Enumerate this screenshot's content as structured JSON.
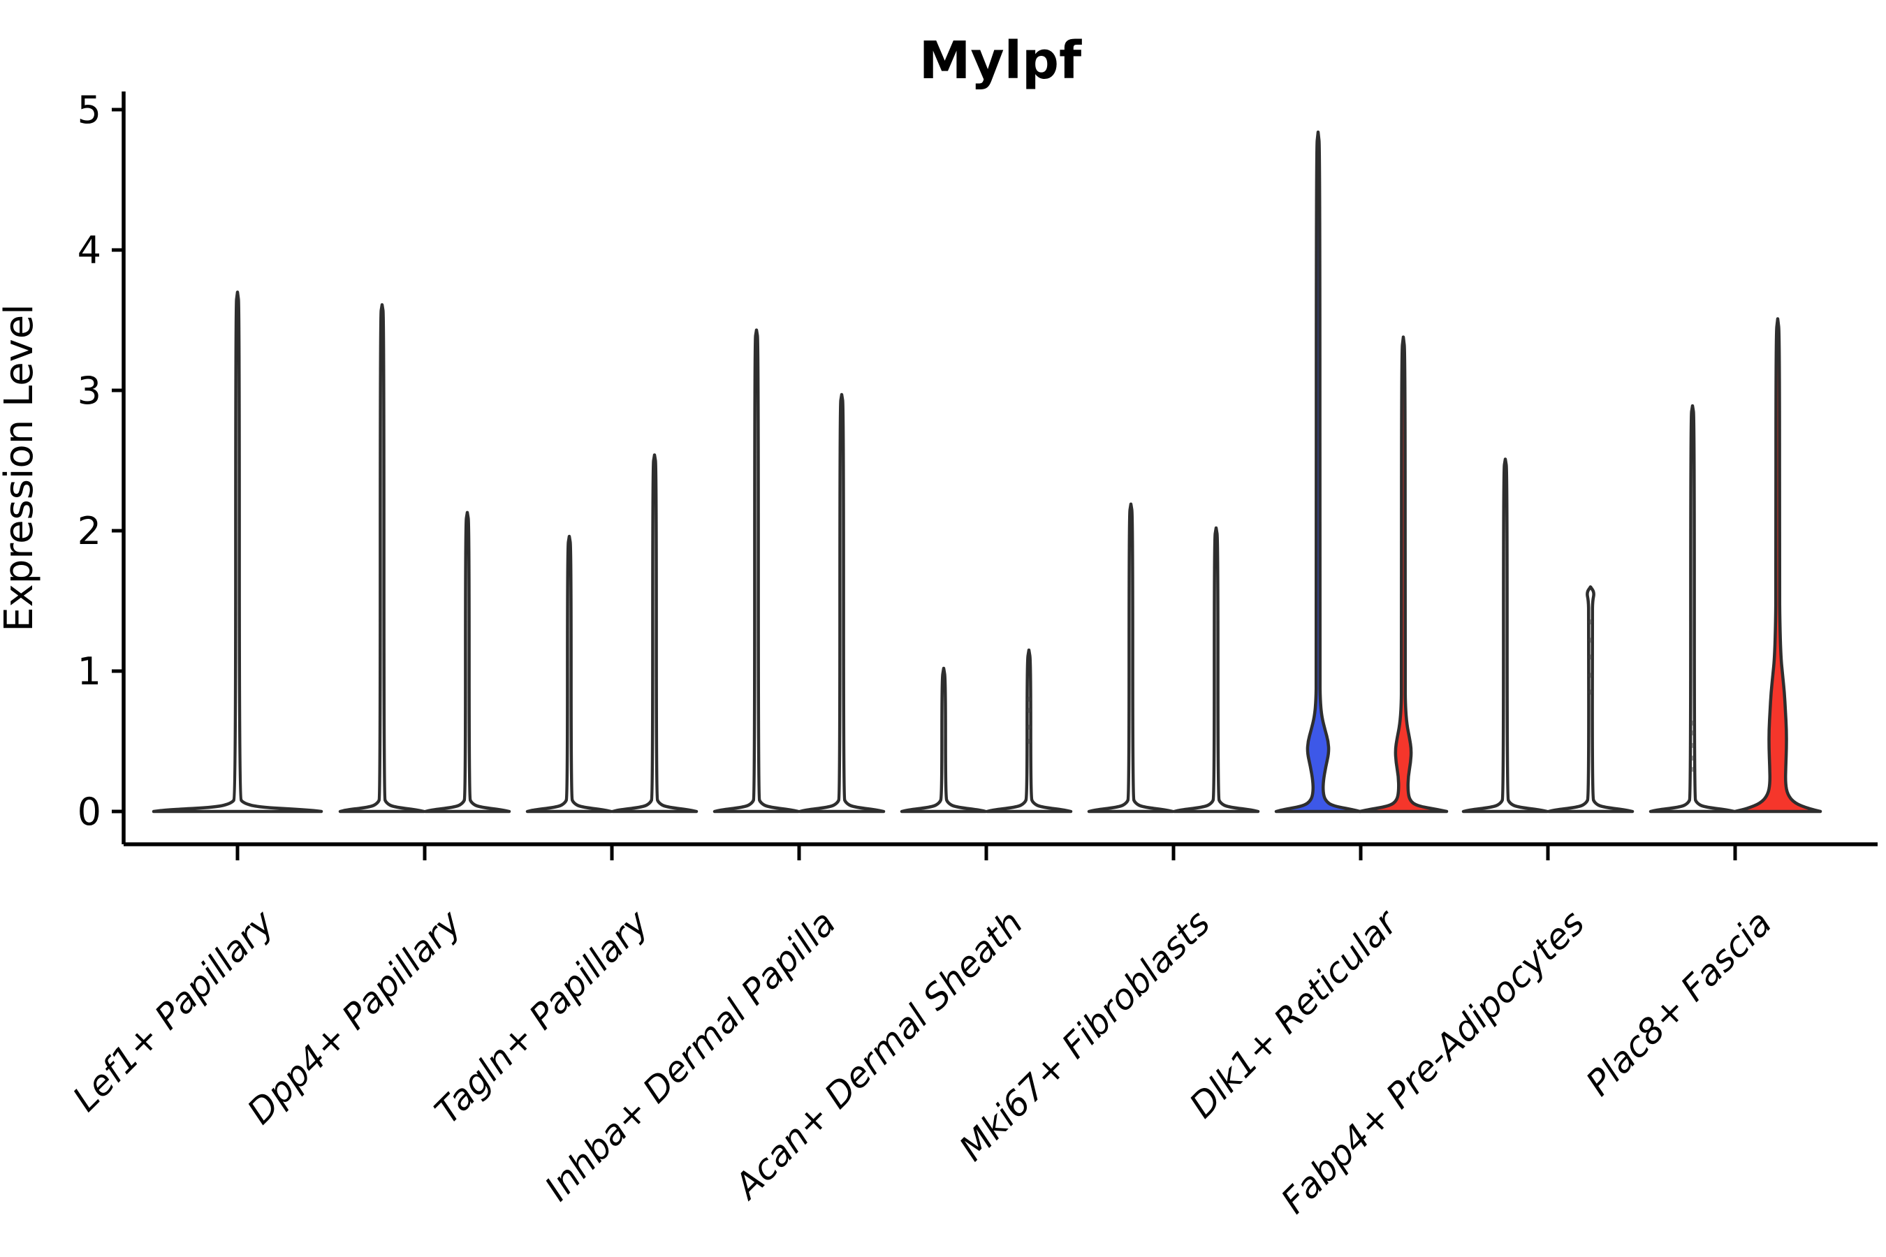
{
  "chart_data": {
    "type": "violin",
    "title": "Mylpf",
    "title_weight": "bold",
    "xlabel": "",
    "ylabel": "Expression Level",
    "ylim": [
      0,
      5
    ],
    "yticks": [
      0,
      1,
      2,
      3,
      4,
      5
    ],
    "grid": false,
    "legend": "none",
    "x_tick_label_rotation_deg": 45,
    "outline_color": "#2e2e2e",
    "split_colors": {
      "blue": "#3d58e8",
      "red": "#f5362b"
    },
    "categories": [
      "Lef1+ Papillary",
      "Dpp4+ Papillary",
      "Tagln+ Papillary",
      "Inhba+ Dermal Papilla",
      "Acan+ Dermal Sheath",
      "Mki67+ Fibroblasts",
      "Dlk1+ Reticular",
      "Fabp4+ Pre-Adipocytes",
      "Plac8+ Fascia"
    ],
    "violins": [
      {
        "category": "Lef1+ Papillary",
        "position": "single",
        "fill": "#ffffff",
        "max_expression": 3.7,
        "profile": [
          [
            0,
            120
          ],
          [
            0.012,
            100
          ],
          [
            0.03,
            30
          ],
          [
            0.06,
            8
          ],
          [
            0.1,
            2.6
          ],
          [
            3.6,
            2.6
          ],
          [
            3.7,
            0
          ]
        ]
      },
      {
        "category": "Dpp4+ Papillary",
        "position": "left",
        "fill": "#ffffff",
        "max_expression": 3.61
      },
      {
        "category": "Dpp4+ Papillary",
        "position": "right",
        "fill": "#ffffff",
        "max_expression": 2.13
      },
      {
        "category": "Tagln+ Papillary",
        "position": "left",
        "fill": "#ffffff",
        "max_expression": 1.96
      },
      {
        "category": "Tagln+ Papillary",
        "position": "right",
        "fill": "#ffffff",
        "max_expression": 2.54
      },
      {
        "category": "Inhba+ Dermal Papilla",
        "position": "left",
        "fill": "#ffffff",
        "max_expression": 3.43
      },
      {
        "category": "Inhba+ Dermal Papilla",
        "position": "right",
        "fill": "#ffffff",
        "max_expression": 2.97
      },
      {
        "category": "Acan+ Dermal Sheath",
        "position": "left",
        "fill": "#ffffff",
        "max_expression": 1.02
      },
      {
        "category": "Acan+ Dermal Sheath",
        "position": "right",
        "fill": "#ffffff",
        "max_expression": 1.15,
        "jitter_points": [
          0.5,
          0.6,
          0.72,
          0.8
        ]
      },
      {
        "category": "Mki67+ Fibroblasts",
        "position": "left",
        "fill": "#ffffff",
        "max_expression": 2.19
      },
      {
        "category": "Mki67+ Fibroblasts",
        "position": "right",
        "fill": "#ffffff",
        "max_expression": 2.02
      },
      {
        "category": "Dlk1+ Reticular",
        "position": "left",
        "fill": "#3d58e8",
        "max_expression": 4.84,
        "bulge_range": [
          0.28,
          0.62
        ],
        "profile": [
          [
            0,
            60
          ],
          [
            0.015,
            48
          ],
          [
            0.04,
            20
          ],
          [
            0.08,
            10
          ],
          [
            0.14,
            7
          ],
          [
            0.22,
            7.5
          ],
          [
            0.32,
            11
          ],
          [
            0.42,
            15.5
          ],
          [
            0.5,
            14.5
          ],
          [
            0.58,
            10
          ],
          [
            0.68,
            5
          ],
          [
            0.8,
            3
          ],
          [
            0.95,
            2.6
          ],
          [
            4.72,
            2.6
          ],
          [
            4.84,
            0
          ]
        ]
      },
      {
        "category": "Dlk1+ Reticular",
        "position": "right",
        "fill": "#f5362b",
        "max_expression": 3.38,
        "bulge_range": [
          0.3,
          0.6
        ],
        "profile": [
          [
            0,
            62
          ],
          [
            0.015,
            48
          ],
          [
            0.04,
            19
          ],
          [
            0.08,
            9
          ],
          [
            0.15,
            6.5
          ],
          [
            0.25,
            7
          ],
          [
            0.35,
            10.5
          ],
          [
            0.44,
            11.5
          ],
          [
            0.52,
            9
          ],
          [
            0.62,
            5
          ],
          [
            0.75,
            3
          ],
          [
            0.92,
            2.6
          ],
          [
            3.27,
            2.6
          ],
          [
            3.38,
            0
          ]
        ]
      },
      {
        "category": "Fabp4+ Pre-Adipocytes",
        "position": "left",
        "fill": "#ffffff",
        "max_expression": 2.51
      },
      {
        "category": "Fabp4+ Pre-Adipocytes",
        "position": "right",
        "fill": "#ffffff",
        "max_expression": 1.6,
        "profile": [
          [
            0,
            60
          ],
          [
            0.012,
            50
          ],
          [
            0.032,
            16
          ],
          [
            0.06,
            6
          ],
          [
            0.1,
            2.6
          ],
          [
            1.4,
            2.6
          ],
          [
            1.5,
            3
          ],
          [
            1.56,
            5.5
          ],
          [
            1.6,
            0
          ]
        ],
        "jitter_points": [
          0.85,
          0.97,
          1.1,
          1.22,
          1.35
        ]
      },
      {
        "category": "Plac8+ Fascia",
        "position": "left",
        "fill": "#ffffff",
        "max_expression": 2.89,
        "jitter_points": [
          0.3,
          0.38,
          0.47,
          0.56,
          0.63
        ]
      },
      {
        "category": "Plac8+ Fascia",
        "position": "right",
        "fill": "#f5362b",
        "max_expression": 3.51,
        "bulge_range": [
          0.0,
          0.97
        ],
        "profile": [
          [
            0,
            61
          ],
          [
            0.02,
            44
          ],
          [
            0.06,
            24
          ],
          [
            0.12,
            14
          ],
          [
            0.2,
            11
          ],
          [
            0.32,
            11.5
          ],
          [
            0.45,
            12.5
          ],
          [
            0.58,
            12.5
          ],
          [
            0.72,
            11
          ],
          [
            0.85,
            9.5
          ],
          [
            0.97,
            7
          ],
          [
            1.1,
            4.5
          ],
          [
            1.35,
            3
          ],
          [
            1.6,
            2.6
          ],
          [
            3.4,
            2.6
          ],
          [
            3.51,
            0
          ]
        ]
      }
    ]
  }
}
